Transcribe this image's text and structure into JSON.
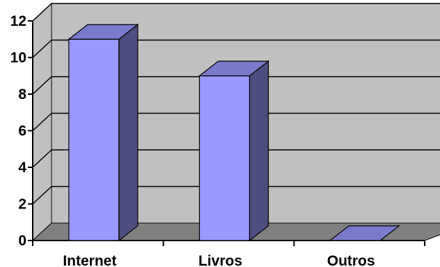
{
  "chart_data": {
    "type": "bar",
    "categories": [
      "Internet",
      "Livros",
      "Outros"
    ],
    "values": [
      11,
      9,
      0
    ],
    "title": "",
    "xlabel": "",
    "ylabel": "",
    "ylim": [
      0,
      12
    ],
    "yticks": [
      "0",
      "2",
      "4",
      "6",
      "8",
      "10",
      "12"
    ],
    "grid": true,
    "three_d": true,
    "colors": {
      "bar_front": "#9999ff",
      "bar_side": "#4d4d80",
      "bar_top": "#7a7acc",
      "wall": "#c0c0c0",
      "floor": "#808080"
    }
  }
}
